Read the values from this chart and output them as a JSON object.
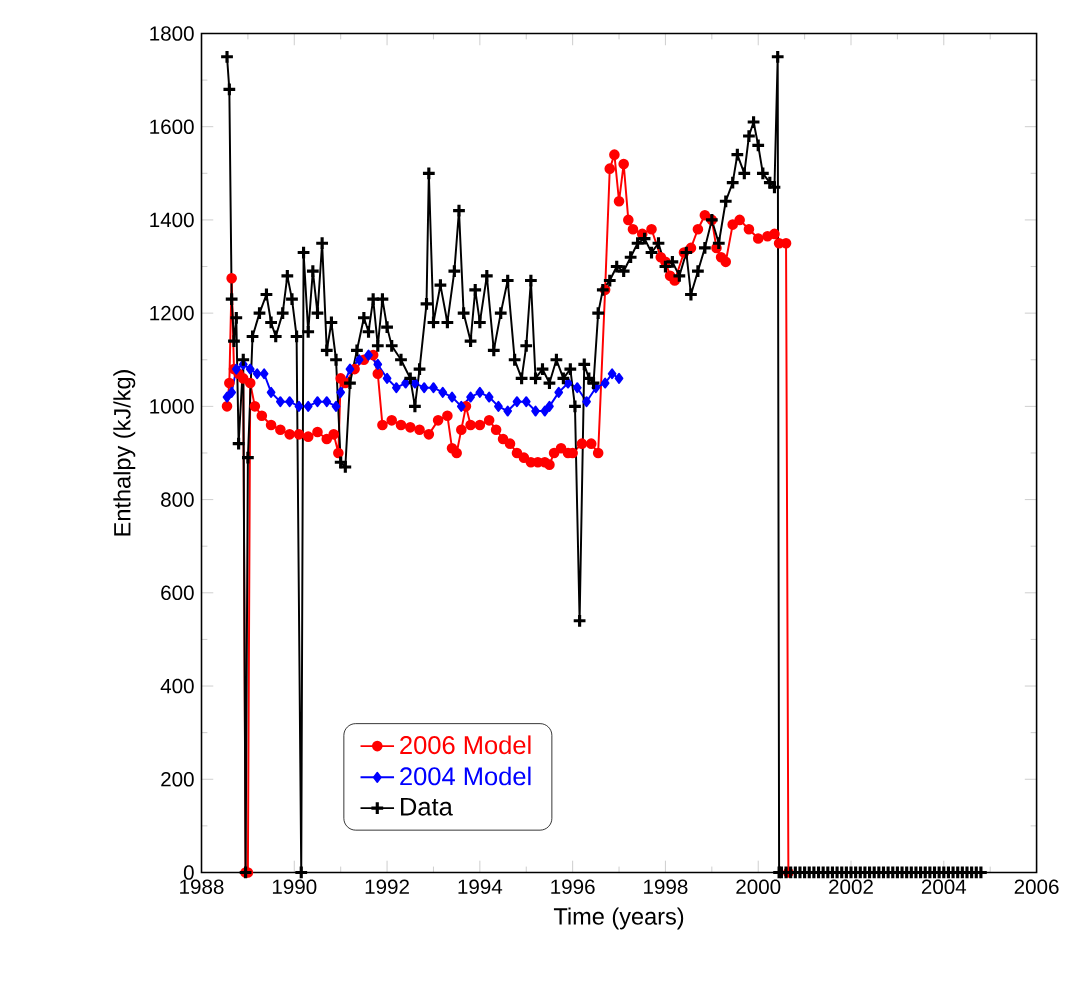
{
  "chart_data": {
    "type": "line",
    "xlabel": "Time (years)",
    "ylabel": "Enthalpy (kJ/kg)",
    "xlim": [
      1988,
      2006
    ],
    "ylim": [
      0,
      1800
    ],
    "xticks": [
      1988,
      1990,
      1992,
      1994,
      1996,
      1998,
      2000,
      2002,
      2004,
      2006
    ],
    "yticks": [
      0,
      200,
      400,
      600,
      800,
      1000,
      1200,
      1400,
      1600,
      1800
    ],
    "legend": "bottom left",
    "series": [
      {
        "name": "2006 Model",
        "color": "#ff0000",
        "marker": "circle",
        "x": [
          1988.55,
          1988.6,
          1988.65,
          1988.7,
          1988.8,
          1988.9,
          1988.95,
          1989.0,
          1989.05,
          1989.15,
          1989.3,
          1989.5,
          1989.7,
          1989.9,
          1990.1,
          1990.3,
          1990.5,
          1990.7,
          1990.85,
          1990.95,
          1991.0,
          1991.1,
          1991.3,
          1991.5,
          1991.7,
          1991.8,
          1991.9,
          1992.1,
          1992.3,
          1992.5,
          1992.7,
          1992.9,
          1993.1,
          1993.3,
          1993.4,
          1993.5,
          1993.6,
          1993.7,
          1993.8,
          1994.0,
          1994.2,
          1994.35,
          1994.5,
          1994.65,
          1994.8,
          1994.95,
          1995.1,
          1995.25,
          1995.4,
          1995.5,
          1995.6,
          1995.75,
          1995.9,
          1996.0,
          1996.2,
          1996.4,
          1996.55,
          1996.7,
          1996.8,
          1996.9,
          1997.0,
          1997.1,
          1997.2,
          1997.3,
          1997.5,
          1997.7,
          1997.9,
          1998.0,
          1998.1,
          1998.2,
          1998.4,
          1998.55,
          1998.7,
          1998.85,
          1999.0,
          1999.1,
          1999.2,
          1999.3,
          1999.45,
          1999.6,
          1999.8,
          2000.0,
          2000.2,
          2000.35,
          2000.45,
          2000.6,
          2000.65
        ],
        "values": [
          1000,
          1050,
          1275,
          1080,
          1070,
          1060,
          0,
          0,
          1050,
          1000,
          980,
          960,
          950,
          940,
          940,
          935,
          945,
          930,
          940,
          900,
          1060,
          1050,
          1080,
          1100,
          1110,
          1070,
          960,
          970,
          960,
          955,
          950,
          940,
          970,
          980,
          910,
          900,
          950,
          1000,
          960,
          960,
          970,
          950,
          930,
          920,
          900,
          890,
          880,
          880,
          880,
          875,
          900,
          910,
          900,
          900,
          920,
          920,
          900,
          1250,
          1510,
          1540,
          1440,
          1520,
          1400,
          1380,
          1370,
          1380,
          1320,
          1310,
          1280,
          1270,
          1330,
          1340,
          1380,
          1410,
          1400,
          1340,
          1320,
          1310,
          1390,
          1400,
          1380,
          1360,
          1365,
          1370,
          1350,
          1350,
          0
        ]
      },
      {
        "name": "2004 Model",
        "color": "#0000ff",
        "marker": "diamond",
        "x": [
          1988.55,
          1988.65,
          1988.75,
          1988.9,
          1989.05,
          1989.2,
          1989.35,
          1989.5,
          1989.7,
          1989.9,
          1990.1,
          1990.3,
          1990.5,
          1990.7,
          1990.9,
          1991.0,
          1991.2,
          1991.4,
          1991.6,
          1991.8,
          1992.0,
          1992.2,
          1992.4,
          1992.6,
          1992.8,
          1993.0,
          1993.2,
          1993.4,
          1993.6,
          1993.8,
          1994.0,
          1994.2,
          1994.4,
          1994.6,
          1994.8,
          1995.0,
          1995.2,
          1995.4,
          1995.5,
          1995.7,
          1995.9,
          1996.1,
          1996.3,
          1996.5,
          1996.7,
          1996.85,
          1997.0
        ],
        "values": [
          1020,
          1030,
          1080,
          1090,
          1080,
          1070,
          1070,
          1030,
          1010,
          1010,
          1000,
          1000,
          1010,
          1010,
          1000,
          1030,
          1080,
          1100,
          1110,
          1090,
          1060,
          1040,
          1050,
          1050,
          1040,
          1040,
          1030,
          1020,
          1000,
          1020,
          1030,
          1020,
          1000,
          990,
          1010,
          1010,
          990,
          990,
          1000,
          1030,
          1050,
          1040,
          1010,
          1040,
          1050,
          1070,
          1060
        ]
      },
      {
        "name": "Data",
        "color": "#000000",
        "marker": "cross",
        "x": [
          1988.55,
          1988.6,
          1988.65,
          1988.7,
          1988.75,
          1988.8,
          1988.9,
          1988.95,
          1989.0,
          1989.1,
          1989.25,
          1989.4,
          1989.5,
          1989.6,
          1989.75,
          1989.85,
          1989.95,
          1990.05,
          1990.15,
          1990.2,
          1990.3,
          1990.4,
          1990.5,
          1990.6,
          1990.7,
          1990.8,
          1990.9,
          1991.0,
          1991.1,
          1991.2,
          1991.35,
          1991.5,
          1991.6,
          1991.7,
          1991.8,
          1991.9,
          1992.0,
          1992.1,
          1992.3,
          1992.5,
          1992.6,
          1992.7,
          1992.85,
          1992.9,
          1993.0,
          1993.15,
          1993.3,
          1993.45,
          1993.55,
          1993.65,
          1993.8,
          1993.9,
          1994.0,
          1994.15,
          1994.3,
          1994.45,
          1994.6,
          1994.75,
          1994.9,
          1995.0,
          1995.1,
          1995.2,
          1995.35,
          1995.5,
          1995.65,
          1995.8,
          1995.95,
          1996.05,
          1996.15,
          1996.25,
          1996.35,
          1996.45,
          1996.55,
          1996.65,
          1996.8,
          1996.95,
          1997.1,
          1997.25,
          1997.4,
          1997.55,
          1997.7,
          1997.85,
          1998.0,
          1998.15,
          1998.3,
          1998.45,
          1998.55,
          1998.7,
          1998.85,
          1999.0,
          1999.15,
          1999.3,
          1999.45,
          1999.55,
          1999.7,
          1999.8,
          1999.9,
          2000.0,
          2000.1,
          2000.25,
          2000.35,
          2000.42,
          2000.45,
          2000.5,
          2000.6,
          2000.7,
          2000.8,
          2000.9,
          2001.0,
          2001.1,
          2001.2,
          2001.3,
          2001.4,
          2001.5,
          2001.6,
          2001.7,
          2001.8,
          2001.9,
          2002.0,
          2002.1,
          2002.2,
          2002.3,
          2002.4,
          2002.5,
          2002.6,
          2002.7,
          2002.8,
          2002.9,
          2003.0,
          2003.1,
          2003.2,
          2003.3,
          2003.4,
          2003.5,
          2003.6,
          2003.7,
          2003.8,
          2003.9,
          2004.0,
          2004.1,
          2004.2,
          2004.3,
          2004.4,
          2004.5,
          2004.6,
          2004.7,
          2004.8
        ],
        "values": [
          1750,
          1680,
          1230,
          1140,
          1190,
          920,
          1100,
          0,
          890,
          1150,
          1200,
          1240,
          1180,
          1150,
          1200,
          1280,
          1230,
          1150,
          0,
          1330,
          1160,
          1290,
          1200,
          1350,
          1120,
          1180,
          1100,
          880,
          870,
          1050,
          1120,
          1190,
          1160,
          1230,
          1130,
          1230,
          1170,
          1130,
          1100,
          1060,
          1000,
          1080,
          1220,
          1500,
          1180,
          1260,
          1180,
          1290,
          1420,
          1200,
          1140,
          1250,
          1180,
          1280,
          1120,
          1200,
          1270,
          1100,
          1060,
          1130,
          1270,
          1060,
          1080,
          1050,
          1100,
          1060,
          1080,
          1000,
          540,
          1090,
          1060,
          1050,
          1200,
          1250,
          1270,
          1300,
          1290,
          1320,
          1350,
          1360,
          1330,
          1350,
          1300,
          1310,
          1280,
          1330,
          1240,
          1290,
          1340,
          1400,
          1350,
          1440,
          1480,
          1540,
          1500,
          1580,
          1610,
          1560,
          1500,
          1480,
          1470,
          1750,
          0,
          0,
          0,
          0,
          0,
          0,
          0,
          0,
          0,
          0,
          0,
          0,
          0,
          0,
          0,
          0,
          0,
          0,
          0,
          0,
          0,
          0,
          0,
          0,
          0,
          0,
          0,
          0,
          0,
          0,
          0,
          0,
          0,
          0,
          0,
          0,
          0,
          0,
          0,
          0,
          0,
          0,
          0,
          0,
          0
        ]
      }
    ]
  }
}
